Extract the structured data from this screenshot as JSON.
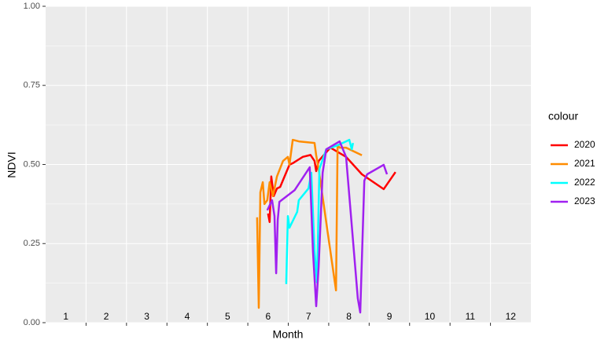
{
  "chart_data": {
    "type": "line",
    "xlabel": "Month",
    "ylabel": "NDVI",
    "legend_title": "colour",
    "legend_position": "right",
    "grid": true,
    "xlim": [
      0,
      12
    ],
    "xticks": [
      1,
      2,
      3,
      4,
      5,
      6,
      7,
      8,
      9,
      10,
      11
    ],
    "month_labels": [
      "1",
      "2",
      "3",
      "4",
      "5",
      "6",
      "7",
      "8",
      "9",
      "10",
      "11",
      "12"
    ],
    "ylim": [
      0,
      1
    ],
    "yticks": [
      {
        "value": 0,
        "label": "0.00"
      },
      {
        "value": 0.25,
        "label": "0.25"
      },
      {
        "value": 0.5,
        "label": "0.50"
      },
      {
        "value": 0.75,
        "label": "0.75"
      },
      {
        "value": 1,
        "label": "1.00"
      }
    ],
    "series": [
      {
        "name": "2020",
        "color": "#ff0000",
        "x": [
          5.5,
          5.54,
          5.58,
          5.64,
          5.72,
          5.8,
          6.03,
          6.11,
          6.36,
          6.55,
          6.65,
          6.69,
          6.75,
          7.04,
          7.43,
          7.82,
          8.36,
          8.65
        ],
        "values": [
          0.345,
          0.318,
          0.462,
          0.4,
          0.424,
          0.429,
          0.499,
          0.504,
          0.524,
          0.53,
          0.511,
          0.479,
          0.511,
          0.553,
          0.524,
          0.469,
          0.422,
          0.476
        ]
      },
      {
        "name": "2021",
        "color": "#ff8c00",
        "x": [
          5.23,
          5.27,
          5.31,
          5.37,
          5.41,
          5.48,
          5.54,
          5.62,
          5.72,
          5.87,
          5.99,
          6.03,
          6.11,
          6.26,
          6.65,
          6.69,
          6.75,
          7.0,
          7.18,
          7.22,
          7.27,
          7.43,
          7.82
        ],
        "values": [
          0.333,
          0.047,
          0.412,
          0.444,
          0.375,
          0.387,
          0.444,
          0.4,
          0.462,
          0.511,
          0.524,
          0.499,
          0.578,
          0.573,
          0.568,
          0.529,
          0.486,
          0.263,
          0.102,
          0.561,
          0.553,
          0.553,
          0.529
        ]
      },
      {
        "name": "2022",
        "color": "#00ffff",
        "x": [
          5.95,
          5.99,
          6.03,
          6.22,
          6.26,
          6.5,
          6.57,
          6.65,
          6.71,
          6.77,
          6.94,
          7.23,
          7.43,
          7.51,
          7.57,
          7.6
        ],
        "values": [
          0.122,
          0.337,
          0.3,
          0.35,
          0.387,
          0.424,
          0.474,
          0.226,
          0.127,
          0.486,
          0.548,
          0.561,
          0.573,
          0.578,
          0.548,
          0.568
        ]
      },
      {
        "name": "2023",
        "color": "#a020f0",
        "x": [
          5.48,
          5.6,
          5.66,
          5.7,
          5.74,
          5.78,
          6.16,
          6.53,
          6.61,
          6.69,
          6.75,
          6.85,
          6.94,
          7.27,
          7.43,
          7.72,
          7.78,
          7.88,
          7.95,
          8.36,
          8.44
        ],
        "values": [
          0.355,
          0.387,
          0.337,
          0.156,
          0.325,
          0.382,
          0.419,
          0.491,
          0.226,
          0.052,
          0.176,
          0.474,
          0.548,
          0.573,
          0.524,
          0.077,
          0.032,
          0.449,
          0.469,
          0.499,
          0.469
        ]
      }
    ]
  }
}
